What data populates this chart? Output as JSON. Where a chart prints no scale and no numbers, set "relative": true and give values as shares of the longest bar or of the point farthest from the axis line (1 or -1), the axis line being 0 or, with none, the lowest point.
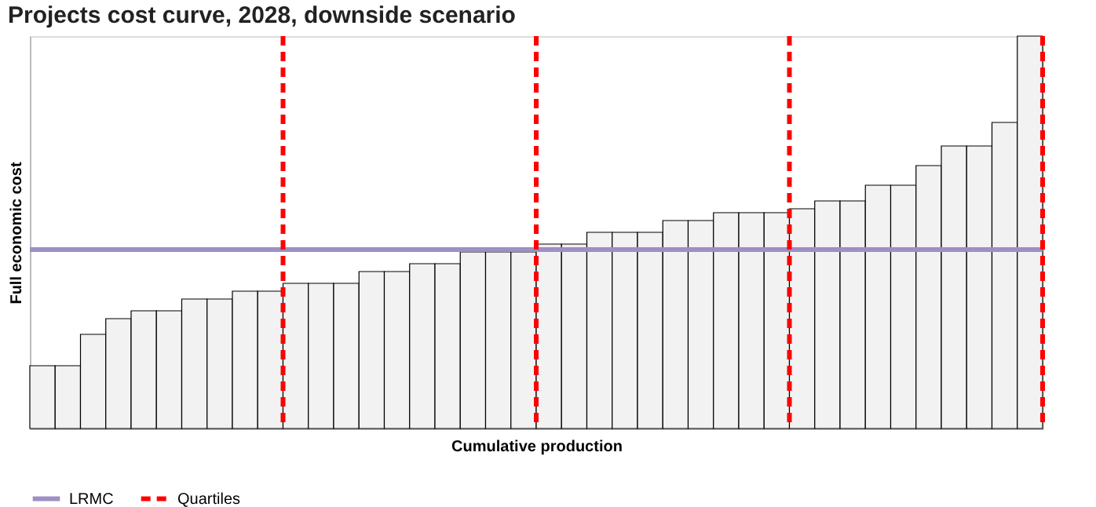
{
  "chart_data": {
    "type": "bar",
    "title": "Projects cost curve, 2028, downside scenario",
    "xlabel": "Cumulative production",
    "ylabel": "Full economic cost",
    "relative": true,
    "grid": false,
    "legend": "bottom",
    "categories": [
      null,
      null,
      null,
      null,
      null,
      null,
      null,
      null,
      null,
      null,
      null,
      null,
      null,
      null,
      null,
      null,
      null,
      null,
      null,
      null,
      null,
      null,
      null,
      null,
      null,
      null,
      null,
      null,
      null,
      null,
      null,
      null,
      null,
      null,
      null,
      null,
      null,
      null,
      null,
      null
    ],
    "series": [
      {
        "color": "#f2f2f2",
        "values": [
          0.16,
          0.16,
          0.24,
          0.28,
          0.3,
          0.3,
          0.33,
          0.33,
          0.35,
          0.35,
          0.37,
          0.37,
          0.37,
          0.4,
          0.4,
          0.42,
          0.42,
          0.45,
          0.45,
          0.45,
          0.47,
          0.47,
          0.5,
          0.5,
          0.5,
          0.53,
          0.53,
          0.55,
          0.55,
          0.55,
          0.56,
          0.58,
          0.58,
          0.62,
          0.62,
          0.67,
          0.72,
          0.72,
          0.78,
          1.0
        ]
      }
    ],
    "ref_lines": [
      {
        "axis": "y",
        "value": 0.456,
        "label": "LRMC",
        "color": "#9e8fc4",
        "line_style": "solid"
      },
      {
        "axis": "x",
        "label": "Quartiles",
        "color": "#ff0000",
        "line_style": "dashed"
      }
    ]
  }
}
